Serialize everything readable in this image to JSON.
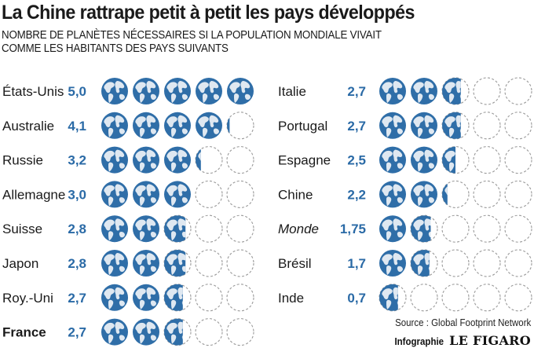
{
  "header": {
    "title": "La Chine rattrape petit à petit les pays développés",
    "subtitle_line1": "NOMBRE DE PLANÈTES NÉCESSAIRES SI LA POPULATION MONDIALE VIVAIT",
    "subtitle_line2": "COMME LES HABITANTS DES PAYS SUIVANTS"
  },
  "footer": {
    "source": "Source : Global Footprint Network",
    "credit_label": "Infographie",
    "credit_brand": "LE FIGARO"
  },
  "colors": {
    "ocean": "#2f6ea8",
    "land": "#dfe8f1",
    "empty_stroke": "#9a9a9a",
    "value_text": "#2a6aa6"
  },
  "chart_data": {
    "type": "pictogram",
    "title": "La Chine rattrape petit à petit les pays développés",
    "unit": "Nombre de planètes",
    "max_icons": 5,
    "series": [
      {
        "name": "left",
        "items": [
          {
            "label": "États-Unis",
            "value": 5.0,
            "value_text": "5,0",
            "style": "normal"
          },
          {
            "label": "Australie",
            "value": 4.1,
            "value_text": "4,1",
            "style": "normal"
          },
          {
            "label": "Russie",
            "value": 3.2,
            "value_text": "3,2",
            "style": "normal"
          },
          {
            "label": "Allemagne",
            "value": 3.0,
            "value_text": "3,0",
            "style": "normal"
          },
          {
            "label": "Suisse",
            "value": 2.8,
            "value_text": "2,8",
            "style": "normal"
          },
          {
            "label": "Japon",
            "value": 2.8,
            "value_text": "2,8",
            "style": "normal"
          },
          {
            "label": "Roy.-Uni",
            "value": 2.7,
            "value_text": "2,7",
            "style": "normal"
          },
          {
            "label": "France",
            "value": 2.7,
            "value_text": "2,7",
            "style": "emph"
          }
        ]
      },
      {
        "name": "right",
        "items": [
          {
            "label": "Italie",
            "value": 2.7,
            "value_text": "2,7",
            "style": "normal"
          },
          {
            "label": "Portugal",
            "value": 2.7,
            "value_text": "2,7",
            "style": "normal"
          },
          {
            "label": "Espagne",
            "value": 2.5,
            "value_text": "2,5",
            "style": "normal"
          },
          {
            "label": "Chine",
            "value": 2.2,
            "value_text": "2,2",
            "style": "normal"
          },
          {
            "label": "Monde",
            "value": 1.75,
            "value_text": "1,75",
            "style": "ital"
          },
          {
            "label": "Brésil",
            "value": 1.7,
            "value_text": "1,7",
            "style": "normal"
          },
          {
            "label": "Inde",
            "value": 0.7,
            "value_text": "0,7",
            "style": "normal"
          }
        ]
      }
    ]
  }
}
